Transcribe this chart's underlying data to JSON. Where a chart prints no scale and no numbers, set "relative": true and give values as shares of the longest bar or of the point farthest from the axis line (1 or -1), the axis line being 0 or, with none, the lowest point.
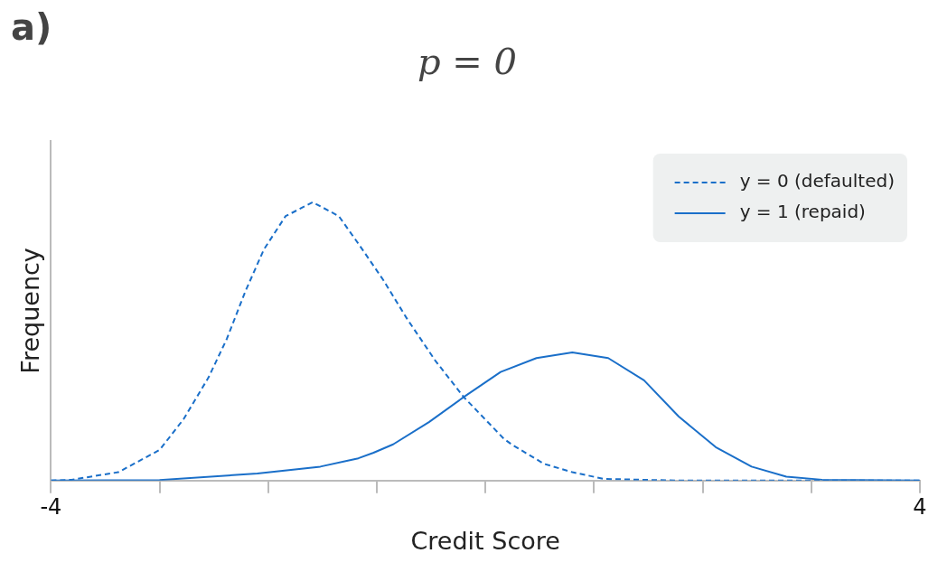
{
  "chart_data": {
    "type": "line",
    "title": "p = 0",
    "annotations": [
      "a)"
    ],
    "xlabel": "Credit Score",
    "ylabel": "Frequency",
    "relative": true,
    "xlim": [
      -4,
      4
    ],
    "xticks": [
      -4,
      {
        "value": -3,
        "label": null
      },
      {
        "value": -2,
        "label": null
      },
      {
        "value": -1,
        "label": null
      },
      {
        "value": 0,
        "label": null
      },
      {
        "value": 1,
        "label": null
      },
      {
        "value": 2,
        "label": null
      },
      {
        "value": 3,
        "label": null
      },
      4
    ],
    "grid": false,
    "legend": "top right",
    "marker": "none",
    "series": [
      {
        "name": "y = 0 (defaulted)",
        "color": "#1a6fc9",
        "line_style": "dashed",
        "x": [
          -4,
          -3.81,
          -3.38,
          -3.0,
          -2.78,
          -2.55,
          -2.38,
          -2.21,
          -2.04,
          -1.84,
          -1.59,
          -1.35,
          -1.15,
          -0.94,
          -0.72,
          -0.46,
          -0.2,
          0.17,
          0.24,
          0.54,
          0.8,
          1.09,
          1.78,
          4
        ],
        "values": [
          0,
          0.003,
          0.03,
          0.11,
          0.22,
          0.37,
          0.51,
          0.68,
          0.83,
          0.95,
          1,
          0.95,
          0.84,
          0.72,
          0.58,
          0.43,
          0.3,
          0.15,
          0.13,
          0.06,
          0.03,
          0.006,
          0,
          0
        ]
      },
      {
        "name": "y = 1 (repaid)",
        "color": "#1a6fc9",
        "line_style": "solid",
        "x": [
          -4,
          -3,
          -2.1,
          -1.52,
          -1.17,
          -1.03,
          -0.85,
          -0.52,
          -0.2,
          0.14,
          0.47,
          0.8,
          1.13,
          1.46,
          1.78,
          2.12,
          2.45,
          2.77,
          3.1,
          4
        ],
        "values": [
          0,
          0.002,
          0.025,
          0.05,
          0.08,
          0.1,
          0.13,
          0.21,
          0.3,
          0.39,
          0.44,
          0.46,
          0.44,
          0.36,
          0.23,
          0.12,
          0.05,
          0.014,
          0.003,
          0
        ]
      }
    ]
  }
}
